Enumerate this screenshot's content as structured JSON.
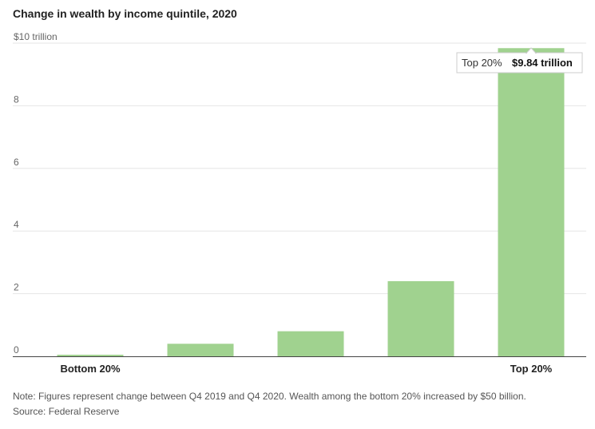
{
  "chart_data": {
    "type": "bar",
    "title": "Change in wealth by income quintile, 2020",
    "categories": [
      "Bottom 20%",
      "",
      "",
      "",
      "Top 20%"
    ],
    "values": [
      0.05,
      0.4,
      0.8,
      2.4,
      9.84
    ],
    "ylim": [
      0,
      10
    ],
    "yticks": [
      {
        "value": 0,
        "label": "0"
      },
      {
        "value": 2,
        "label": "2"
      },
      {
        "value": 4,
        "label": "4"
      },
      {
        "value": 6,
        "label": "6"
      },
      {
        "value": 8,
        "label": "8"
      },
      {
        "value": 10,
        "label": "$10 trillion"
      }
    ],
    "grid": true,
    "bar_color": "#a0d28f",
    "tooltip": {
      "category": "Top 20%",
      "value_label": "$9.84 trillion"
    }
  },
  "notes": {
    "note": "Note: Figures represent change between Q4 2019 and Q4 2020. Wealth among the bottom 20% increased by $50 billion.",
    "source": "Source: Federal Reserve"
  }
}
